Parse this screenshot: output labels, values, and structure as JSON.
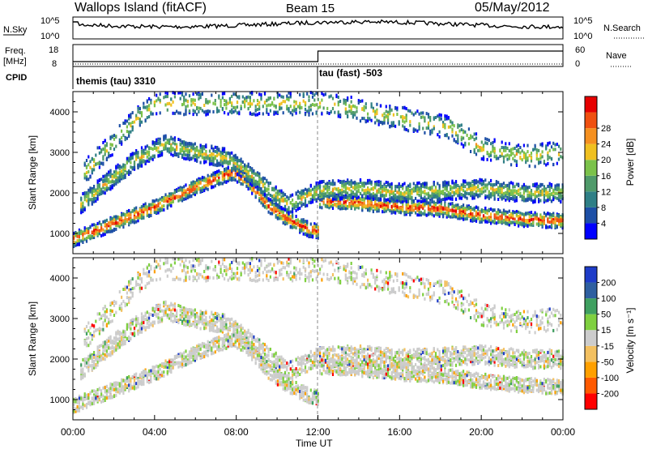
{
  "header": {
    "station": "Wallops Island (fitACF)",
    "beam": "Beam 15",
    "date": "05/May/2012"
  },
  "noise_panel": {
    "left_label": "N.Sky",
    "right_label": "N.Search",
    "left_ticks": [
      "10^5",
      "10^0"
    ],
    "right_ticks": [
      "10^5",
      "10^0"
    ]
  },
  "freq_panel": {
    "left_label_1": "Freq.",
    "left_label_2": "[MHz]",
    "left_ticks": [
      "18",
      "8"
    ],
    "right_label": "Nave",
    "right_ticks": [
      "60",
      "0"
    ],
    "cpid_label": "CPID",
    "cpid_entries": [
      "themis (tau) 3310",
      "tau (fast) -503"
    ]
  },
  "power_panel": {
    "ylabel": "Slant Range [km]",
    "yticks": [
      "1000",
      "2000",
      "3000",
      "4000"
    ],
    "colorbar_label": "Power [dB]",
    "colorbar_ticks": [
      "4",
      "8",
      "12",
      "16",
      "20",
      "24",
      "28"
    ],
    "colors": [
      "#0000ff",
      "#1d4fa6",
      "#2f7f86",
      "#4f9a6a",
      "#7bc24a",
      "#f0c020",
      "#f59020",
      "#f05010",
      "#e60000"
    ]
  },
  "velocity_panel": {
    "ylabel": "Slant Range [km]",
    "yticks": [
      "1000",
      "2000",
      "3000",
      "4000"
    ],
    "colorbar_label": "Velocity [m s⁻¹]",
    "colorbar_ticks": [
      "-200",
      "-100",
      "-50",
      "-15",
      "15",
      "50",
      "100",
      "200"
    ],
    "colors": [
      "#ff0000",
      "#ff5a00",
      "#ffa000",
      "#f3c060",
      "#cccccc",
      "#7fd040",
      "#3fa060",
      "#2e5fa0",
      "#1e3cc8"
    ]
  },
  "xaxis": {
    "label": "Time UT",
    "ticks": [
      "00:00",
      "04:00",
      "08:00",
      "12:00",
      "16:00",
      "20:00",
      "00:00"
    ]
  },
  "chart_data": {
    "type": "heatmap",
    "title": "Wallops Island (fitACF)  Beam 15  05/May/2012",
    "xlabel": "Time UT",
    "ylabel": "Slant Range [km]",
    "xlim": [
      "00:00",
      "24:00"
    ],
    "ylim": [
      500,
      4500
    ],
    "grid": false,
    "power_range_db": [
      0,
      32
    ],
    "velocity_range_ms": [
      -250,
      250
    ],
    "freq_mhz": {
      "before_12UT": 9.5,
      "after_12UT": 17.5
    },
    "cpid": [
      {
        "start": "00:00",
        "end": "12:00",
        "label": "themis (tau) 3310"
      },
      {
        "start": "12:00",
        "end": "24:00",
        "label": "tau (fast) -503"
      }
    ],
    "echo_bands": [
      {
        "name": "main",
        "points": [
          [
            0.0,
            850
          ],
          [
            1.0,
            1050
          ],
          [
            2.0,
            1250
          ],
          [
            3.0,
            1450
          ],
          [
            4.0,
            1650
          ],
          [
            5.0,
            1900
          ],
          [
            6.0,
            2150
          ],
          [
            7.0,
            2350
          ],
          [
            7.8,
            2500
          ],
          [
            8.5,
            2300
          ],
          [
            9.5,
            1700
          ],
          [
            10.5,
            1350
          ],
          [
            11.5,
            1100
          ],
          [
            12.0,
            1050
          ],
          [
            12.0,
            1800
          ],
          [
            14.0,
            1750
          ],
          [
            16.0,
            1650
          ],
          [
            18.0,
            1600
          ],
          [
            20.0,
            1450
          ],
          [
            22.0,
            1350
          ],
          [
            24.0,
            1300
          ]
        ],
        "power_db": 28,
        "velocity_ms": 0
      },
      {
        "name": "upper",
        "points": [
          [
            0.3,
            1700
          ],
          [
            1.5,
            2200
          ],
          [
            3.0,
            2800
          ],
          [
            4.5,
            3200
          ],
          [
            6.0,
            3000
          ],
          [
            7.5,
            2850
          ],
          [
            8.5,
            2500
          ],
          [
            9.5,
            2100
          ],
          [
            10.5,
            1700
          ],
          [
            12.0,
            2050
          ],
          [
            14.0,
            2100
          ],
          [
            16.0,
            2000
          ],
          [
            18.0,
            2050
          ],
          [
            20.0,
            2100
          ],
          [
            22.0,
            2000
          ],
          [
            24.0,
            2000
          ]
        ],
        "power_db": 12,
        "velocity_ms": 0
      },
      {
        "name": "high",
        "points": [
          [
            0.5,
            2500
          ],
          [
            1.5,
            3000
          ],
          [
            3.0,
            3800
          ],
          [
            4.0,
            4200
          ],
          [
            12.5,
            4200
          ],
          [
            18.5,
            3600
          ],
          [
            20.0,
            3100
          ],
          [
            22.0,
            2900
          ],
          [
            24.0,
            3000
          ]
        ],
        "power_db": 10,
        "velocity_ms": 0
      }
    ]
  }
}
